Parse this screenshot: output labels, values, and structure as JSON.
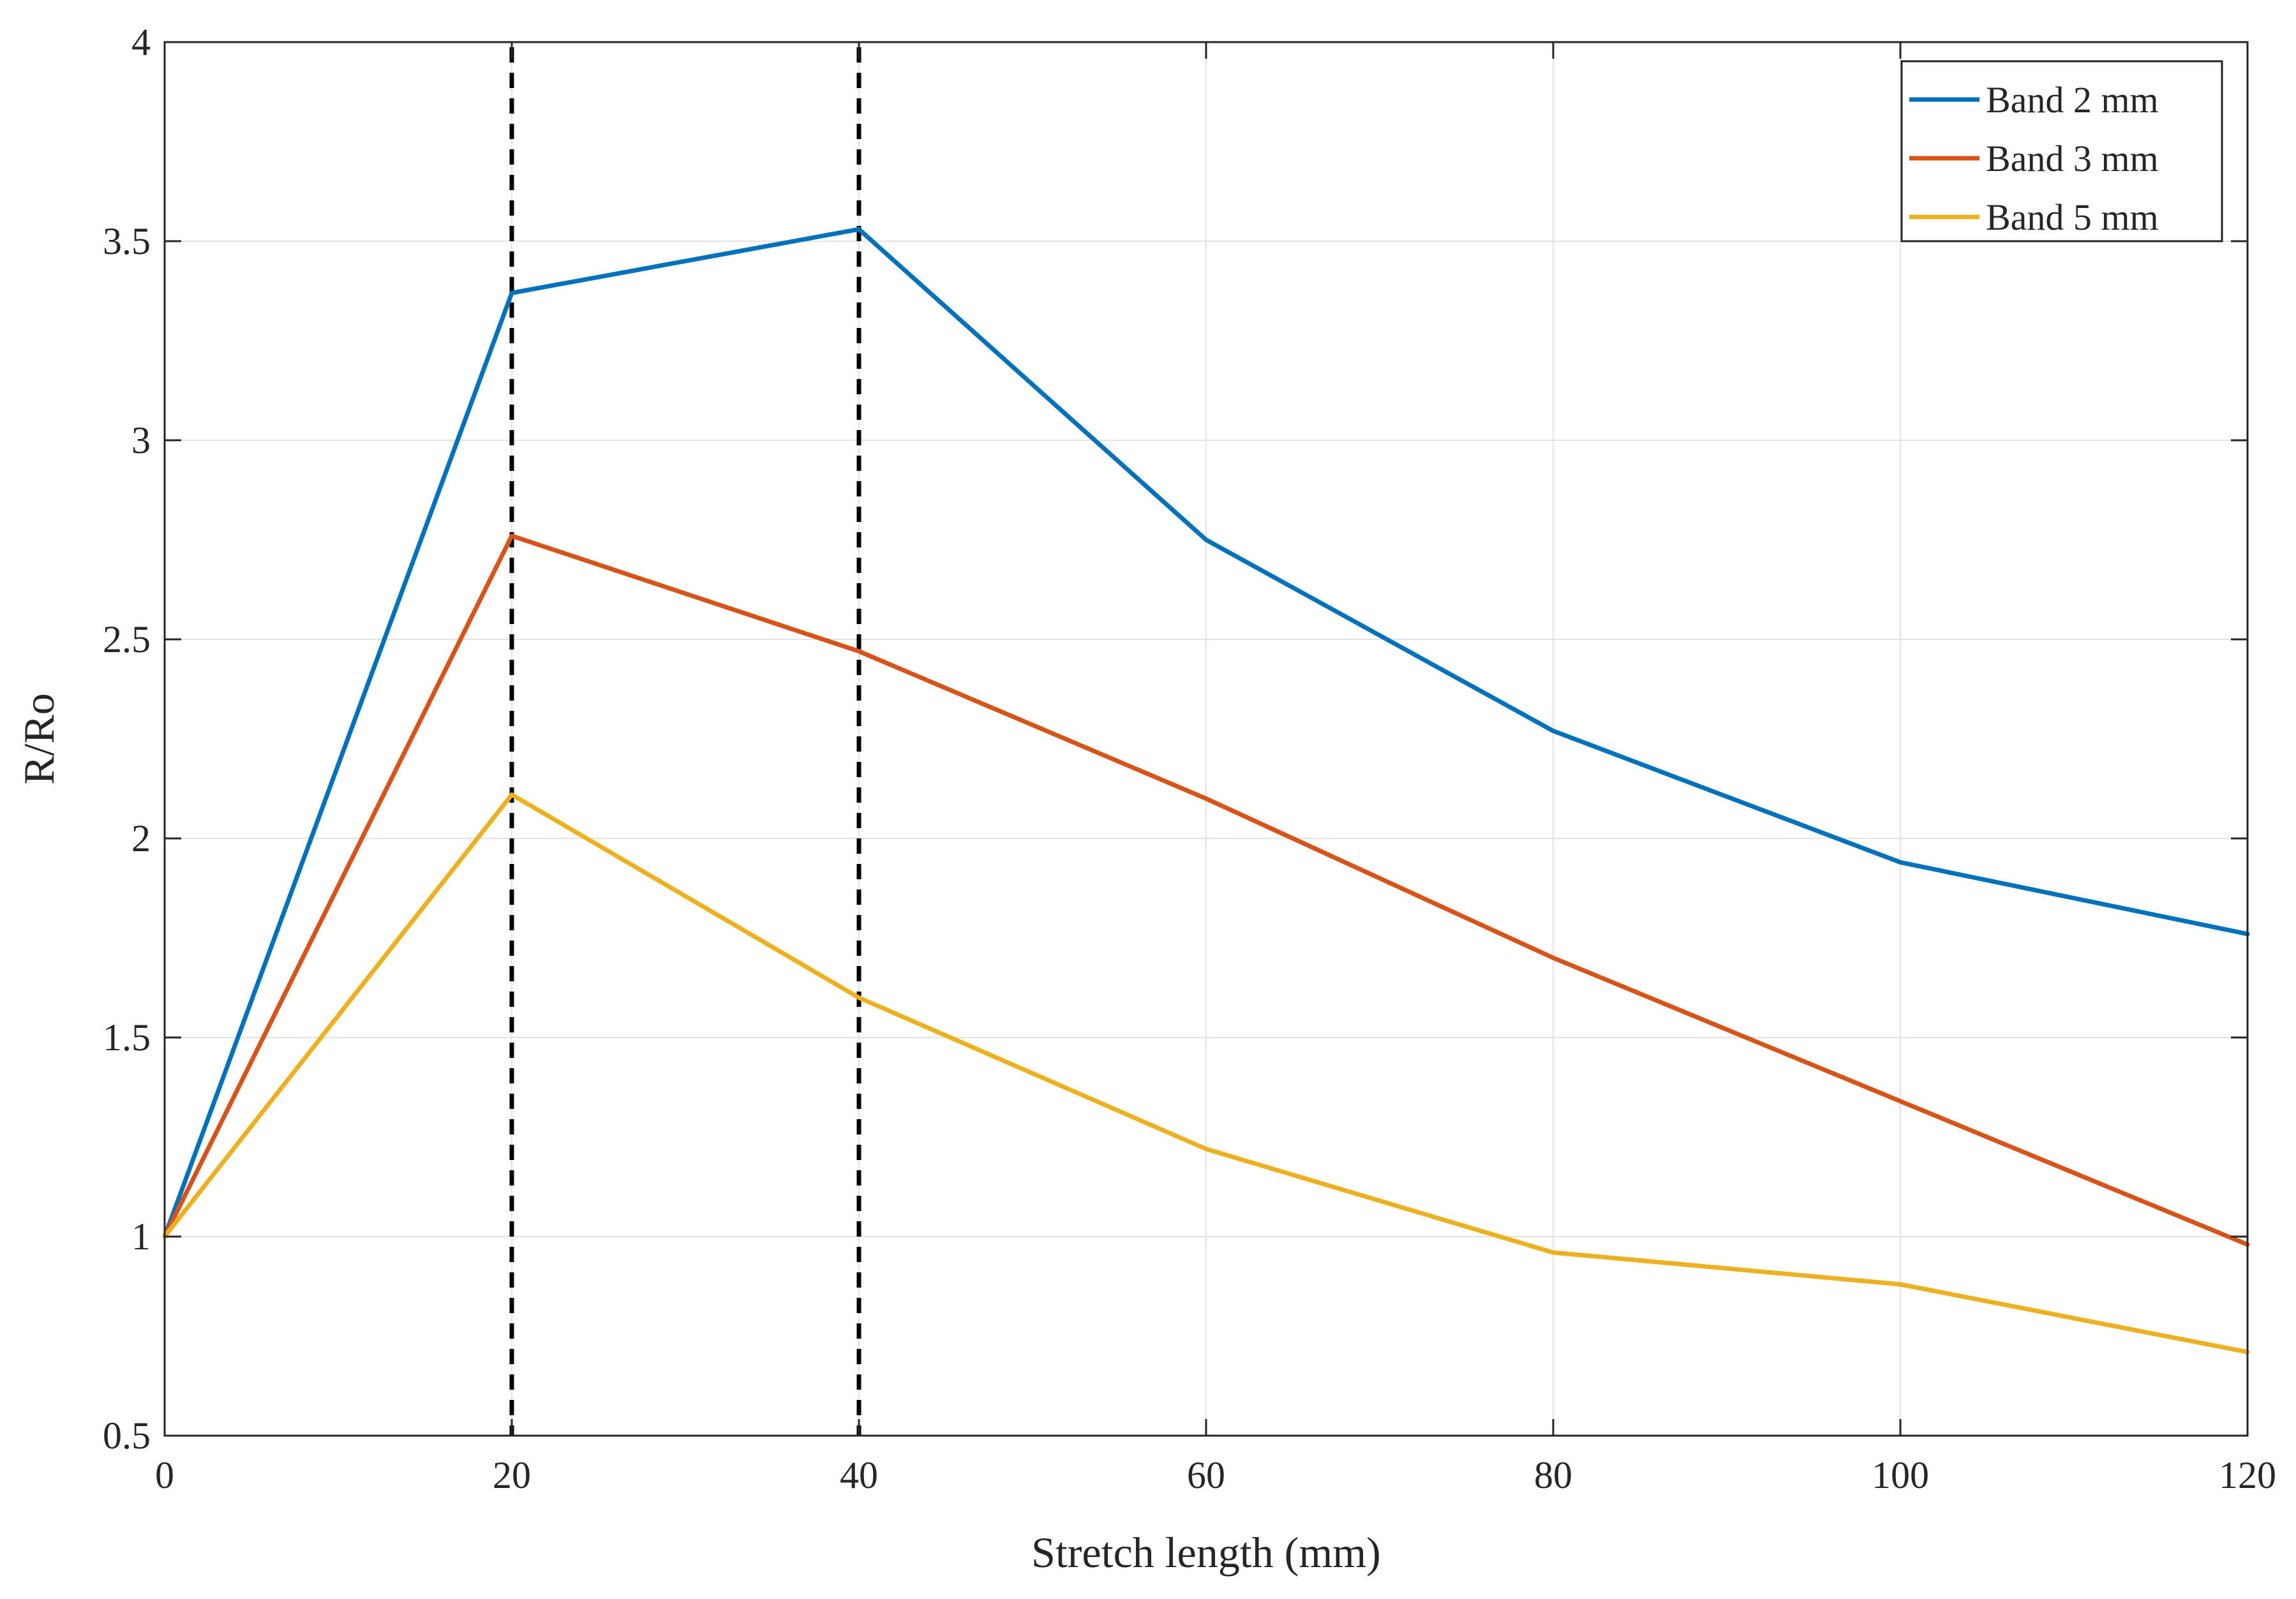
{
  "chart_data": {
    "type": "line",
    "title": "",
    "xlabel": "Stretch length (mm)",
    "ylabel": "R/Ro",
    "xlim": [
      0,
      120
    ],
    "ylim": [
      0.5,
      4
    ],
    "xticks": [
      0,
      20,
      40,
      60,
      80,
      100,
      120
    ],
    "yticks": [
      0.5,
      1,
      1.5,
      2,
      2.5,
      3,
      3.5,
      4
    ],
    "xtick_labels": [
      "0",
      "20",
      "40",
      "60",
      "80",
      "100",
      "120"
    ],
    "ytick_labels": [
      "0.5",
      "1",
      "1.5",
      "2",
      "2.5",
      "3",
      "3.5",
      "4"
    ],
    "grid": true,
    "legend_position": "top-right",
    "x": [
      0,
      20,
      40,
      60,
      80,
      100,
      120
    ],
    "series": [
      {
        "name": "Band 2 mm",
        "color": "#0072BD",
        "values": [
          1,
          3.37,
          3.53,
          2.75,
          2.27,
          1.94,
          1.76
        ]
      },
      {
        "name": "Band 3 mm",
        "color": "#D95319",
        "values": [
          1,
          2.76,
          2.47,
          2.1,
          1.7,
          1.34,
          0.98
        ]
      },
      {
        "name": "Band 5 mm",
        "color": "#EDB120",
        "values": [
          1,
          2.11,
          1.6,
          1.22,
          0.96,
          0.88,
          0.71
        ]
      }
    ],
    "vlines": [
      {
        "x": 20,
        "style": "dashed",
        "color": "#000000"
      },
      {
        "x": 40,
        "style": "dashed",
        "color": "#000000"
      }
    ]
  }
}
